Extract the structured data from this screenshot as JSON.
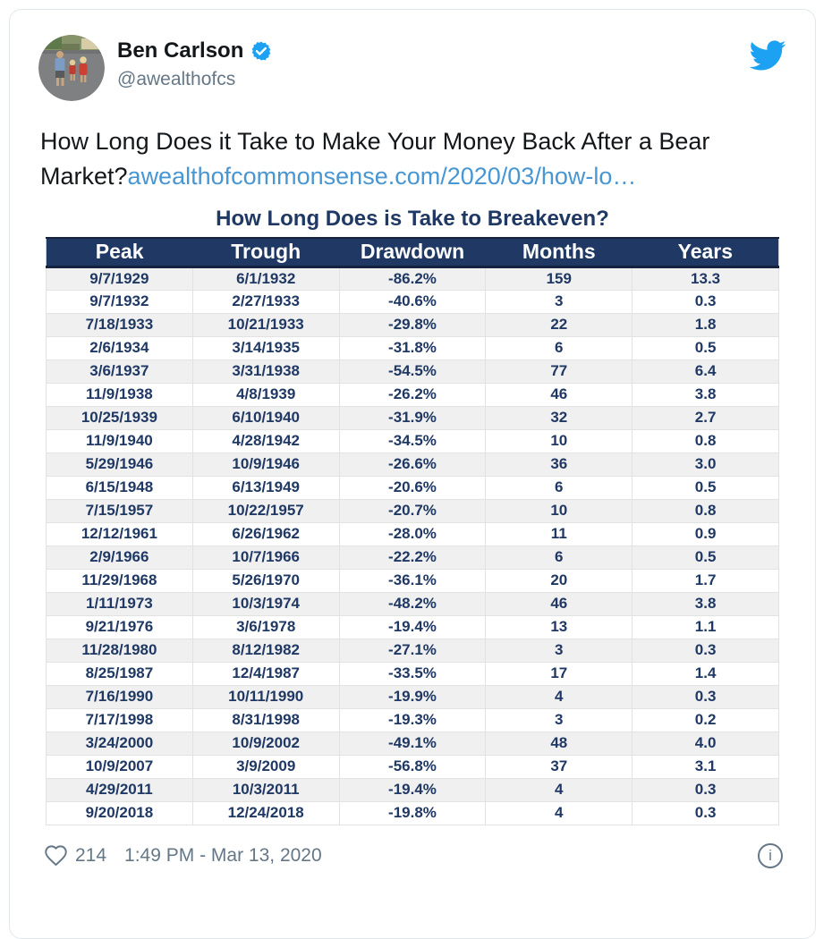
{
  "author": {
    "name": "Ben Carlson",
    "handle": "@awealthofcs"
  },
  "tweet": {
    "text_line1": "How Long Does it Take to Make Your Money Back After a Bear",
    "text_line2_prefix": "Market?",
    "link_text": "awealthofcommonsense.com/2020/03/how-lo…"
  },
  "chart_data": {
    "type": "table",
    "title": "How Long Does is Take to Breakeven?",
    "columns": [
      "Peak",
      "Trough",
      "Drawdown",
      "Months",
      "Years"
    ],
    "rows": [
      [
        "9/7/1929",
        "6/1/1932",
        "-86.2%",
        "159",
        "13.3"
      ],
      [
        "9/7/1932",
        "2/27/1933",
        "-40.6%",
        "3",
        "0.3"
      ],
      [
        "7/18/1933",
        "10/21/1933",
        "-29.8%",
        "22",
        "1.8"
      ],
      [
        "2/6/1934",
        "3/14/1935",
        "-31.8%",
        "6",
        "0.5"
      ],
      [
        "3/6/1937",
        "3/31/1938",
        "-54.5%",
        "77",
        "6.4"
      ],
      [
        "11/9/1938",
        "4/8/1939",
        "-26.2%",
        "46",
        "3.8"
      ],
      [
        "10/25/1939",
        "6/10/1940",
        "-31.9%",
        "32",
        "2.7"
      ],
      [
        "11/9/1940",
        "4/28/1942",
        "-34.5%",
        "10",
        "0.8"
      ],
      [
        "5/29/1946",
        "10/9/1946",
        "-26.6%",
        "36",
        "3.0"
      ],
      [
        "6/15/1948",
        "6/13/1949",
        "-20.6%",
        "6",
        "0.5"
      ],
      [
        "7/15/1957",
        "10/22/1957",
        "-20.7%",
        "10",
        "0.8"
      ],
      [
        "12/12/1961",
        "6/26/1962",
        "-28.0%",
        "11",
        "0.9"
      ],
      [
        "2/9/1966",
        "10/7/1966",
        "-22.2%",
        "6",
        "0.5"
      ],
      [
        "11/29/1968",
        "5/26/1970",
        "-36.1%",
        "20",
        "1.7"
      ],
      [
        "1/11/1973",
        "10/3/1974",
        "-48.2%",
        "46",
        "3.8"
      ],
      [
        "9/21/1976",
        "3/6/1978",
        "-19.4%",
        "13",
        "1.1"
      ],
      [
        "11/28/1980",
        "8/12/1982",
        "-27.1%",
        "3",
        "0.3"
      ],
      [
        "8/25/1987",
        "12/4/1987",
        "-33.5%",
        "17",
        "1.4"
      ],
      [
        "7/16/1990",
        "10/11/1990",
        "-19.9%",
        "4",
        "0.3"
      ],
      [
        "7/17/1998",
        "8/31/1998",
        "-19.3%",
        "3",
        "0.2"
      ],
      [
        "3/24/2000",
        "10/9/2002",
        "-49.1%",
        "48",
        "4.0"
      ],
      [
        "10/9/2007",
        "3/9/2009",
        "-56.8%",
        "37",
        "3.1"
      ],
      [
        "4/29/2011",
        "10/3/2011",
        "-19.4%",
        "4",
        "0.3"
      ],
      [
        "9/20/2018",
        "12/24/2018",
        "-19.8%",
        "4",
        "0.3"
      ]
    ]
  },
  "footer": {
    "like_count": "214",
    "timestamp": "1:49 PM - Mar 13, 2020",
    "info_label": "i"
  },
  "colors": {
    "twitter_blue": "#1da1f2",
    "link_blue": "#4896d2",
    "table_navy": "#1f3864",
    "muted_gray": "#657786",
    "row_stripe": "#f0f0f0",
    "card_border": "#e1e8ed"
  }
}
